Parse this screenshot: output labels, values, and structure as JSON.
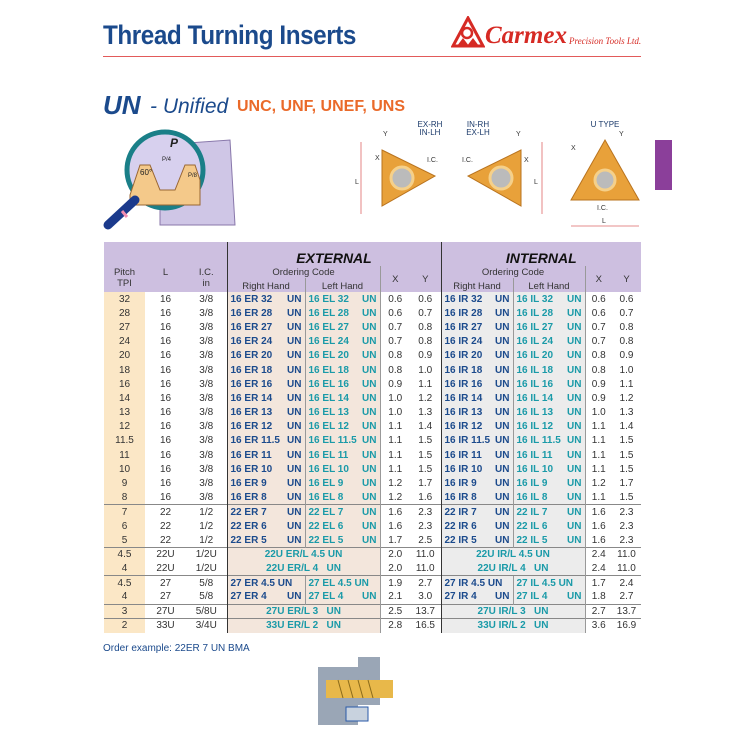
{
  "header": {
    "title": "Thread Turning Inserts",
    "brand": "Carmex",
    "brand_sub": "Precision Tools Ltd."
  },
  "section": {
    "code": "UN",
    "name": "- Unified",
    "types": "UNC, UNF, UNEF, UNS"
  },
  "diagrams": {
    "thread": {
      "p": "P",
      "p4": "P/4",
      "p8": "P/8",
      "angle": "60°"
    },
    "insert1": {
      "label1": "EX-RH",
      "label2": "IN-LH",
      "x": "X",
      "y": "Y",
      "l": "L",
      "ic": "I.C."
    },
    "insert2": {
      "label1": "IN-RH",
      "label2": "EX-LH",
      "x": "X",
      "y": "Y",
      "l": "L",
      "ic": "I.C."
    },
    "insert3": {
      "label1": "U TYPE",
      "x": "X",
      "y": "Y",
      "l": "L",
      "ic": "I.C."
    }
  },
  "colors": {
    "brand_blue": "#1b4a8c",
    "accent_orange": "#ea6a2a",
    "header_purple": "#cdbfe0",
    "tab_purple": "#8b3f9a",
    "lh_teal": "#1a9aa8"
  },
  "table": {
    "headers": {
      "pitch": "Pitch",
      "tpi": "TPI",
      "l": "L",
      "ic": "I.C.",
      "ic_unit": "in",
      "external": "EXTERNAL",
      "internal": "INTERNAL",
      "ordering_code": "Ordering Code",
      "right_hand": "Right Hand",
      "left_hand": "Left Hand",
      "x": "X",
      "y": "Y"
    },
    "rows": [
      [
        "32",
        "16",
        "3/8",
        "16 ER 32|UN",
        "16 EL 32|UN",
        "0.6",
        "0.6",
        "16 IR 32|UN",
        "16 IL 32|UN",
        "0.6",
        "0.6"
      ],
      [
        "28",
        "16",
        "3/8",
        "16 ER 28|UN",
        "16 EL 28|UN",
        "0.6",
        "0.7",
        "16 IR 28|UN",
        "16 IL 28|UN",
        "0.6",
        "0.7"
      ],
      [
        "27",
        "16",
        "3/8",
        "16 ER 27|UN",
        "16 EL 27|UN",
        "0.7",
        "0.8",
        "16 IR 27|UN",
        "16 IL 27|UN",
        "0.7",
        "0.8"
      ],
      [
        "24",
        "16",
        "3/8",
        "16 ER 24|UN",
        "16 EL 24|UN",
        "0.7",
        "0.8",
        "16 IR 24|UN",
        "16 IL 24|UN",
        "0.7",
        "0.8"
      ],
      [
        "20",
        "16",
        "3/8",
        "16 ER 20|UN",
        "16 EL 20|UN",
        "0.8",
        "0.9",
        "16 IR 20|UN",
        "16 IL 20|UN",
        "0.8",
        "0.9"
      ],
      [
        "18",
        "16",
        "3/8",
        "16 ER 18|UN",
        "16 EL 18|UN",
        "0.8",
        "1.0",
        "16 IR 18|UN",
        "16 IL 18|UN",
        "0.8",
        "1.0"
      ],
      [
        "16",
        "16",
        "3/8",
        "16 ER 16|UN",
        "16 EL 16|UN",
        "0.9",
        "1.1",
        "16 IR 16|UN",
        "16 IL 16|UN",
        "0.9",
        "1.1"
      ],
      [
        "14",
        "16",
        "3/8",
        "16 ER 14|UN",
        "16 EL 14|UN",
        "1.0",
        "1.2",
        "16 IR 14|UN",
        "16 IL 14|UN",
        "0.9",
        "1.2"
      ],
      [
        "13",
        "16",
        "3/8",
        "16 ER 13|UN",
        "16 EL 13|UN",
        "1.0",
        "1.3",
        "16 IR 13|UN",
        "16 IL 13|UN",
        "1.0",
        "1.3"
      ],
      [
        "12",
        "16",
        "3/8",
        "16 ER 12|UN",
        "16 EL 12|UN",
        "1.1",
        "1.4",
        "16 IR 12|UN",
        "16 IL 12|UN",
        "1.1",
        "1.4"
      ],
      [
        "11.5",
        "16",
        "3/8",
        "16 ER 11.5|UN",
        "16 EL 11.5|UN",
        "1.1",
        "1.5",
        "16 IR 11.5|UN",
        "16 IL 11.5|UN",
        "1.1",
        "1.5"
      ],
      [
        "11",
        "16",
        "3/8",
        "16 ER 11|UN",
        "16 EL 11|UN",
        "1.1",
        "1.5",
        "16 IR 11|UN",
        "16 IL 11|UN",
        "1.1",
        "1.5"
      ],
      [
        "10",
        "16",
        "3/8",
        "16 ER 10|UN",
        "16 EL 10|UN",
        "1.1",
        "1.5",
        "16 IR 10|UN",
        "16 IL 10|UN",
        "1.1",
        "1.5"
      ],
      [
        "9",
        "16",
        "3/8",
        "16 ER 9|UN",
        "16 EL 9|UN",
        "1.2",
        "1.7",
        "16 IR 9|UN",
        "16 IL 9|UN",
        "1.2",
        "1.7"
      ],
      [
        "8",
        "16",
        "3/8",
        "16 ER 8|UN",
        "16 EL 8|UN",
        "1.2",
        "1.6",
        "16 IR 8|UN",
        "16 IL 8|UN",
        "1.1",
        "1.5"
      ],
      [
        "7",
        "22",
        "1/2",
        "22 ER 7|UN",
        "22 EL 7|UN",
        "1.6",
        "2.3",
        "22 IR 7|UN",
        "22 IL 7|UN",
        "1.6",
        "2.3"
      ],
      [
        "6",
        "22",
        "1/2",
        "22 ER 6|UN",
        "22 EL 6|UN",
        "1.6",
        "2.3",
        "22 IR 6|UN",
        "22 IL 6|UN",
        "1.6",
        "2.3"
      ],
      [
        "5",
        "22",
        "1/2",
        "22 ER 5|UN",
        "22 EL 5|UN",
        "1.7",
        "2.5",
        "22 IR 5|UN",
        "22 IL 5|UN",
        "1.6",
        "2.3"
      ],
      [
        "4.5",
        "22U",
        "1/2U",
        "22U ER/L 4.5 UN",
        null,
        "2.0",
        "11.0",
        "22U IR/L 4.5 UN",
        null,
        "2.4",
        "11.0"
      ],
      [
        "4",
        "22U",
        "1/2U",
        "22U ER/L 4   UN",
        null,
        "2.0",
        "11.0",
        "22U IR/L 4   UN",
        null,
        "2.4",
        "11.0"
      ],
      [
        "4.5",
        "27",
        "5/8",
        "27 ER 4.5 UN|",
        "27 EL 4.5 UN|",
        "1.9",
        "2.7",
        "27 IR 4.5 UN|",
        "27 IL 4.5 UN|",
        "1.7",
        "2.4"
      ],
      [
        "4",
        "27",
        "5/8",
        "27 ER 4|UN",
        "27 EL 4|UN",
        "2.1",
        "3.0",
        "27 IR 4|UN",
        "27 IL 4|UN",
        "1.8",
        "2.7"
      ],
      [
        "3",
        "27U",
        "5/8U",
        "27U ER/L 3   UN",
        null,
        "2.5",
        "13.7",
        "27U IR/L 3   UN",
        null,
        "2.7",
        "13.7"
      ],
      [
        "2",
        "33U",
        "3/4U",
        "33U ER/L 2   UN",
        null,
        "2.8",
        "16.5",
        "33U IR/L 2   UN",
        null,
        "3.6",
        "16.9"
      ]
    ],
    "group_starts": [
      15,
      18,
      20,
      22,
      23
    ]
  },
  "footer": {
    "order_example": "Order example: 22ER 7 UN BMA"
  }
}
